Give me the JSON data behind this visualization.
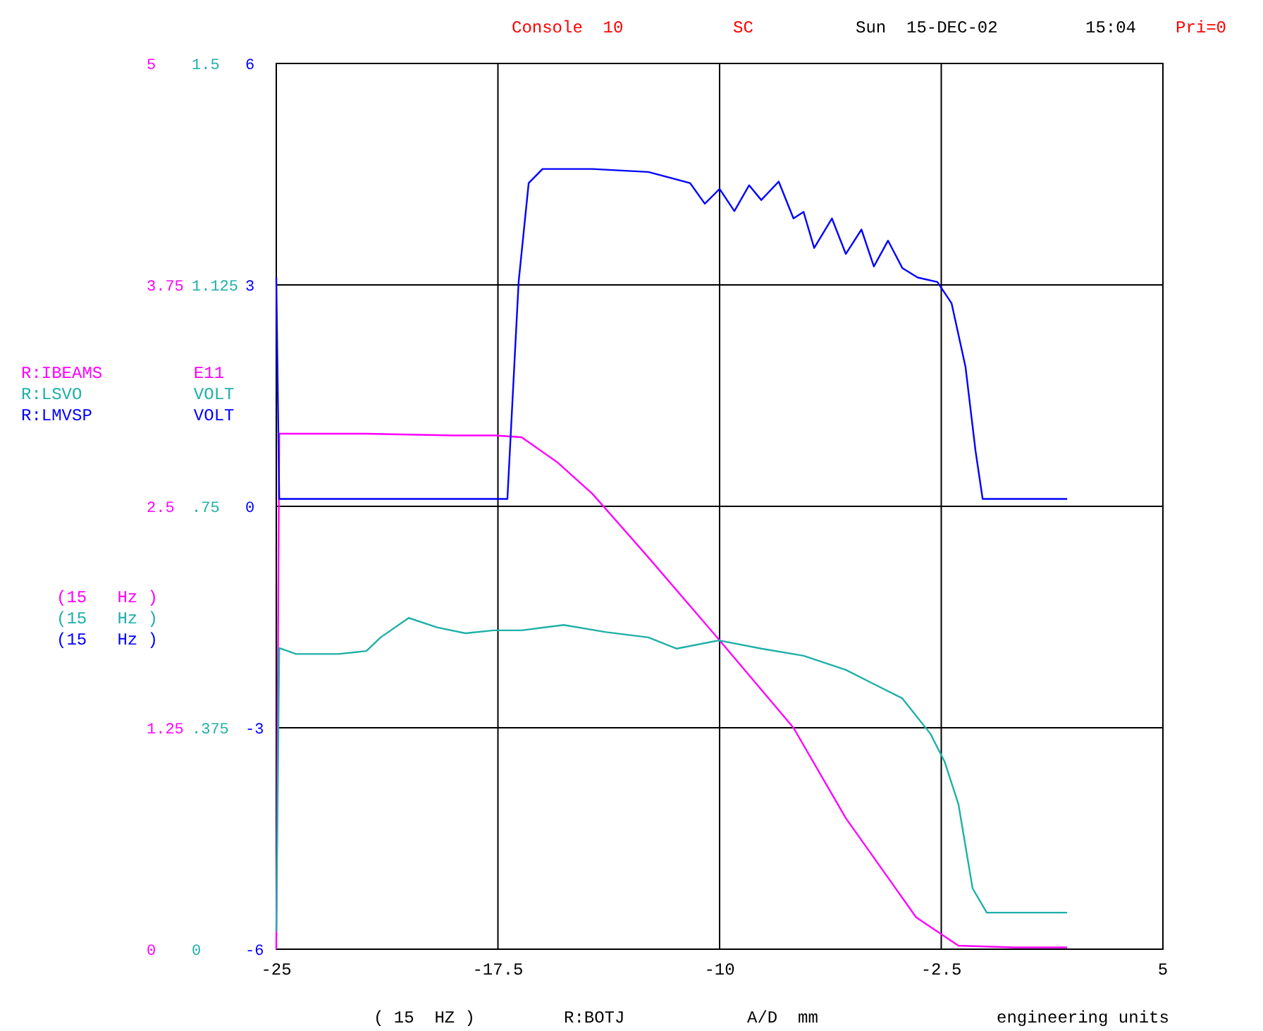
{
  "chart_data": {
    "type": "line",
    "annotations": [
      "(15   Hz )",
      "(15   Hz )",
      "(15   Hz )",
      "( 15  HZ )",
      "A/D  mm",
      "engineering units",
      "Console  10",
      "SC",
      "Sun  15-DEC-02",
      "15:04",
      "Pri=0"
    ],
    "xlabel": "R:BOTJ",
    "xlim": [
      -25,
      5
    ],
    "xticks": [
      -25,
      -17.5,
      -10,
      -2.5,
      5
    ],
    "ylim": [
      0,
      5
    ],
    "yticks": [
      0,
      1.25,
      2.5,
      3.75,
      5
    ],
    "y2lim": [
      0,
      1.5
    ],
    "y2ticks": [
      0,
      {
        "value": 0.375,
        "label": ".375"
      },
      {
        "value": 0.75,
        "label": ".75"
      },
      1.125,
      1.5
    ],
    "y3lim": [
      -6,
      6
    ],
    "y3ticks": [
      -6,
      -3,
      0,
      3,
      6
    ],
    "grid": true,
    "legend": "left",
    "line_style": "solid",
    "marker": "none",
    "series": [
      {
        "name": "R:IBEAMS         E11",
        "color": "#ff00ff",
        "x": [
          -25,
          -24.9,
          -22,
          -19,
          -17.6,
          -16.7,
          -15.5,
          -14.3,
          -12.4,
          -9.93,
          -7.5,
          -5.73,
          -3.35,
          -1.92,
          0,
          1.76
        ],
        "values": [
          0,
          2.91,
          2.91,
          2.9,
          2.9,
          2.89,
          2.75,
          2.57,
          2.21,
          1.73,
          1.25,
          0.74,
          0.18,
          0.02,
          0.01,
          0.01
        ]
      },
      {
        "name": "R:LSVO           VOLT",
        "color": "#1fb0a8",
        "axis": "y2",
        "x": [
          -25,
          -24.9,
          -24.33,
          -22.9,
          -21.95,
          -21.47,
          -20.52,
          -19.56,
          -18.6,
          -17.65,
          -16.7,
          -15.27,
          -13.84,
          -12.41,
          -11.45,
          -10.02,
          -8.59,
          -7.16,
          -5.73,
          -4.78,
          -3.82,
          -2.87,
          -2.39,
          -1.92,
          -1.44,
          -0.96,
          1.76
        ],
        "values": [
          0.03,
          0.51,
          0.5,
          0.5,
          0.505,
          0.528,
          0.561,
          0.545,
          0.535,
          0.54,
          0.54,
          0.549,
          0.537,
          0.528,
          0.509,
          0.523,
          0.509,
          0.497,
          0.473,
          0.449,
          0.425,
          0.365,
          0.318,
          0.246,
          0.103,
          0.062,
          0.062
        ]
      },
      {
        "name": "R:LMVSP          VOLT",
        "color": "#0000ff",
        "axis": "y3",
        "x": [
          -25,
          -24.9,
          -17.18,
          -16.8,
          -16.46,
          -15.99,
          -14.3,
          -12.41,
          -11,
          -10.5,
          -10,
          -9.5,
          -9,
          -8.59,
          -8,
          -7.5,
          -7.16,
          -6.8,
          -6.2,
          -5.73,
          -5.2,
          -4.78,
          -4.3,
          -3.82,
          -3.3,
          -2.63,
          -2.15,
          -1.68,
          -1.34,
          -1.1,
          1.76
        ],
        "values": [
          3.1,
          0.1,
          0.1,
          3.04,
          4.38,
          4.57,
          4.57,
          4.53,
          4.38,
          4.1,
          4.3,
          4.0,
          4.35,
          4.15,
          4.4,
          3.9,
          3.99,
          3.5,
          3.9,
          3.42,
          3.75,
          3.25,
          3.6,
          3.23,
          3.1,
          3.04,
          2.75,
          1.89,
          0.75,
          0.1,
          0.1
        ]
      }
    ]
  }
}
